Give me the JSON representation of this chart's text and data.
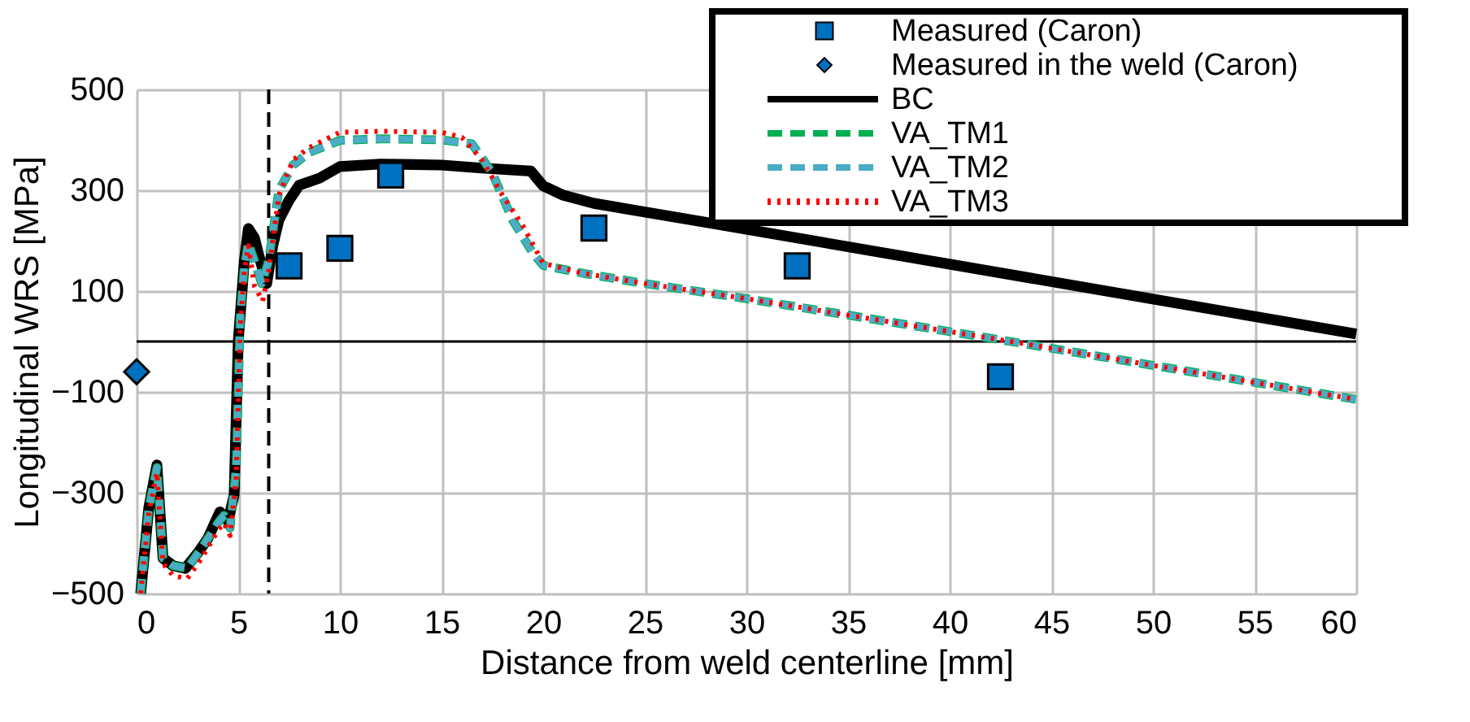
{
  "chart_data": {
    "type": "line",
    "xlabel": "Distance from weld centerline [mm]",
    "ylabel": "Longitudinal WRS [MPa]",
    "xlim": [
      0,
      60
    ],
    "xticks": [
      0,
      5,
      10,
      15,
      20,
      25,
      30,
      35,
      40,
      45,
      50,
      55,
      60
    ],
    "ylim": [
      -500,
      500
    ],
    "yticks": [
      -500,
      -300,
      -100,
      100,
      300,
      500
    ],
    "grid": true,
    "legend": "top right",
    "ref_lines": [
      {
        "axis": "y",
        "value": 0,
        "color": "#000000",
        "line_style": "solid"
      },
      {
        "axis": "x",
        "value": 6.5,
        "color": "#000000",
        "line_style": "dashed"
      }
    ],
    "series": [
      {
        "name": "Measured (Caron)",
        "type": "scatter",
        "marker": "square",
        "color": "#0070c0",
        "x": [
          7.5,
          10,
          12.5,
          22.5,
          32.5,
          42.5
        ],
        "values": [
          150,
          185,
          330,
          225,
          150,
          -70
        ]
      },
      {
        "name": "Measured in the weld (Caron)",
        "type": "scatter",
        "marker": "diamond",
        "color": "#0070c0",
        "x": [
          0
        ],
        "values": [
          -60
        ]
      },
      {
        "name": "BC",
        "type": "line",
        "line_style": "solid",
        "color": "#000000",
        "x": [
          0.2,
          0.6,
          1.0,
          1.3,
          1.8,
          2.4,
          3.0,
          3.5,
          4.1,
          4.5,
          4.8,
          5.0,
          5.3,
          5.5,
          5.8,
          6.0,
          6.4,
          6.7,
          7.0,
          7.5,
          8.0,
          9.0,
          10,
          12,
          15,
          17,
          19.4,
          20,
          21,
          22.5,
          28.2,
          60
        ],
        "values": [
          -500,
          -330,
          -245,
          -430,
          -445,
          -450,
          -420,
          -391,
          -338,
          -357,
          -304,
          0,
          160,
          224,
          205,
          173,
          115,
          190,
          241,
          280,
          310,
          324,
          347,
          352,
          350,
          344,
          338,
          309,
          290,
          274,
          235,
          15
        ]
      },
      {
        "name": "VA_TM1",
        "type": "line",
        "line_style": "dashed",
        "color": "#00b050",
        "x": [
          0.2,
          0.6,
          1.0,
          1.3,
          1.8,
          2.5,
          3.2,
          4.0,
          4.3,
          4.6,
          4.9,
          5.1,
          5.3,
          5.5,
          5.8,
          6.15,
          6.5,
          7.0,
          7.7,
          8.5,
          10,
          12,
          15,
          16.5,
          17.5,
          18.5,
          19.5,
          20,
          22,
          25,
          30,
          43,
          60
        ],
        "values": [
          -500,
          -330,
          -250,
          -430,
          -445,
          -450,
          -410,
          -360,
          -345,
          -370,
          -250,
          50,
          150,
          195,
          160,
          115,
          160,
          300,
          350,
          375,
          399,
          402,
          400,
          392,
          334,
          241,
          175,
          151,
          135,
          115,
          85,
          0,
          -115
        ]
      },
      {
        "name": "VA_TM2",
        "type": "line",
        "line_style": "dashed",
        "color": "#4bacc6",
        "x": [
          0.2,
          0.6,
          1.0,
          1.3,
          1.8,
          2.5,
          3.2,
          4.0,
          4.3,
          4.6,
          4.9,
          5.1,
          5.3,
          5.5,
          5.8,
          6.15,
          6.5,
          7.0,
          7.7,
          8.5,
          10,
          12,
          15,
          16.5,
          17.5,
          18.5,
          19.5,
          20,
          22,
          25,
          30,
          43,
          60
        ],
        "values": [
          -500,
          -330,
          -250,
          -430,
          -445,
          -450,
          -410,
          -360,
          -345,
          -370,
          -250,
          50,
          150,
          195,
          160,
          115,
          160,
          300,
          350,
          375,
          399,
          402,
          400,
          392,
          334,
          241,
          175,
          151,
          135,
          115,
          85,
          0,
          -115
        ]
      },
      {
        "name": "VA_TM3",
        "type": "line",
        "line_style": "dotted",
        "color": "#ff0000",
        "x": [
          0.2,
          0.6,
          1.0,
          1.3,
          1.8,
          2.5,
          3.2,
          4.0,
          4.3,
          4.6,
          4.9,
          5.1,
          5.3,
          5.5,
          5.8,
          6.2,
          6.5,
          7.0,
          7.7,
          8.5,
          10,
          12,
          15,
          16,
          17,
          18,
          19,
          20,
          22,
          25,
          30,
          43,
          60
        ],
        "values": [
          -500,
          -340,
          -260,
          -440,
          -465,
          -470,
          -430,
          -375,
          -360,
          -385,
          -270,
          30,
          140,
          190,
          110,
          80,
          140,
          290,
          360,
          385,
          415,
          417,
          415,
          405,
          360,
          290,
          230,
          155,
          135,
          115,
          85,
          0,
          -115
        ]
      }
    ]
  }
}
